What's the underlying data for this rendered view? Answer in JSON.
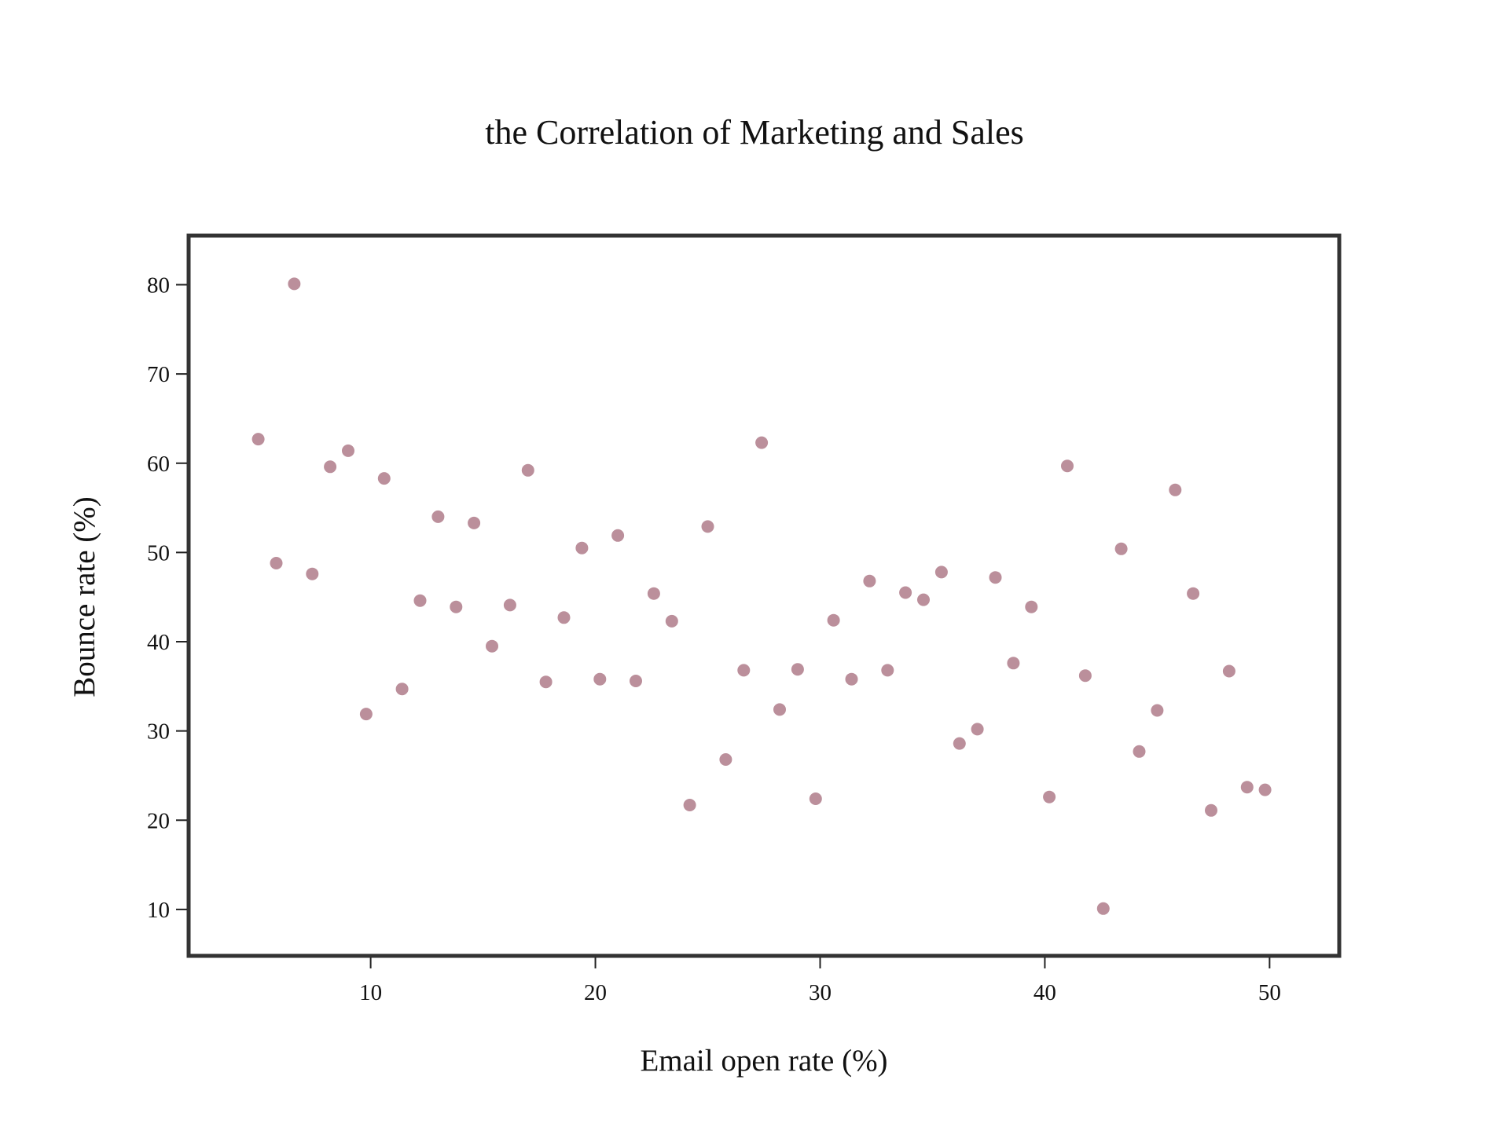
{
  "colors": {
    "marker": "#bb8f9b",
    "frame": "#333333",
    "text": "#111111"
  },
  "chart_data": {
    "type": "scatter",
    "title": "the Correlation of Marketing and Sales",
    "xlabel": "Email open rate (%)",
    "ylabel": "Bounce rate (%)",
    "xlim": [
      1.9,
      53.1
    ],
    "ylim": [
      4.8,
      85.5
    ],
    "xticks": [
      10,
      20,
      30,
      40,
      50
    ],
    "yticks": [
      10,
      20,
      30,
      40,
      50,
      60,
      70,
      80
    ],
    "xtick_labels": [
      "10",
      "20",
      "30",
      "40",
      "50"
    ],
    "ytick_labels": [
      "10",
      "20",
      "30",
      "40",
      "50",
      "60",
      "70",
      "80"
    ],
    "grid": false,
    "legend": "none",
    "series": [
      {
        "x": [
          5.0,
          5.8,
          6.6,
          7.4,
          8.2,
          9.0,
          9.8,
          10.6,
          11.4,
          12.2,
          13.0,
          13.8,
          14.6,
          15.4,
          16.2,
          17.0,
          17.8,
          18.6,
          19.4,
          20.2,
          21.0,
          21.8,
          22.6,
          23.4,
          24.2,
          25.0,
          25.8,
          26.6,
          27.4,
          28.2,
          29.0,
          29.8,
          30.6,
          31.4,
          32.2,
          33.0,
          33.8,
          34.6,
          35.4,
          36.2,
          37.0,
          37.8,
          38.6,
          39.4,
          40.2,
          41.0,
          41.8,
          42.6,
          43.4,
          44.2,
          45.0,
          45.8,
          46.6,
          47.4,
          48.2,
          49.0,
          49.8
        ],
        "y": [
          62.7,
          48.8,
          80.1,
          47.6,
          59.6,
          61.4,
          31.9,
          58.3,
          34.7,
          44.6,
          54.0,
          43.9,
          53.3,
          39.5,
          44.1,
          59.2,
          35.5,
          42.7,
          50.5,
          35.8,
          51.9,
          35.6,
          45.4,
          42.3,
          21.7,
          52.9,
          26.8,
          36.8,
          62.3,
          32.4,
          36.9,
          22.4,
          42.4,
          35.8,
          46.8,
          36.8,
          45.5,
          44.7,
          47.8,
          28.6,
          30.2,
          47.2,
          37.6,
          43.9,
          22.6,
          59.7,
          36.2,
          10.1,
          50.4,
          27.7,
          32.3,
          57.0,
          45.4,
          21.1,
          36.7,
          23.7,
          23.4
        ]
      }
    ]
  }
}
